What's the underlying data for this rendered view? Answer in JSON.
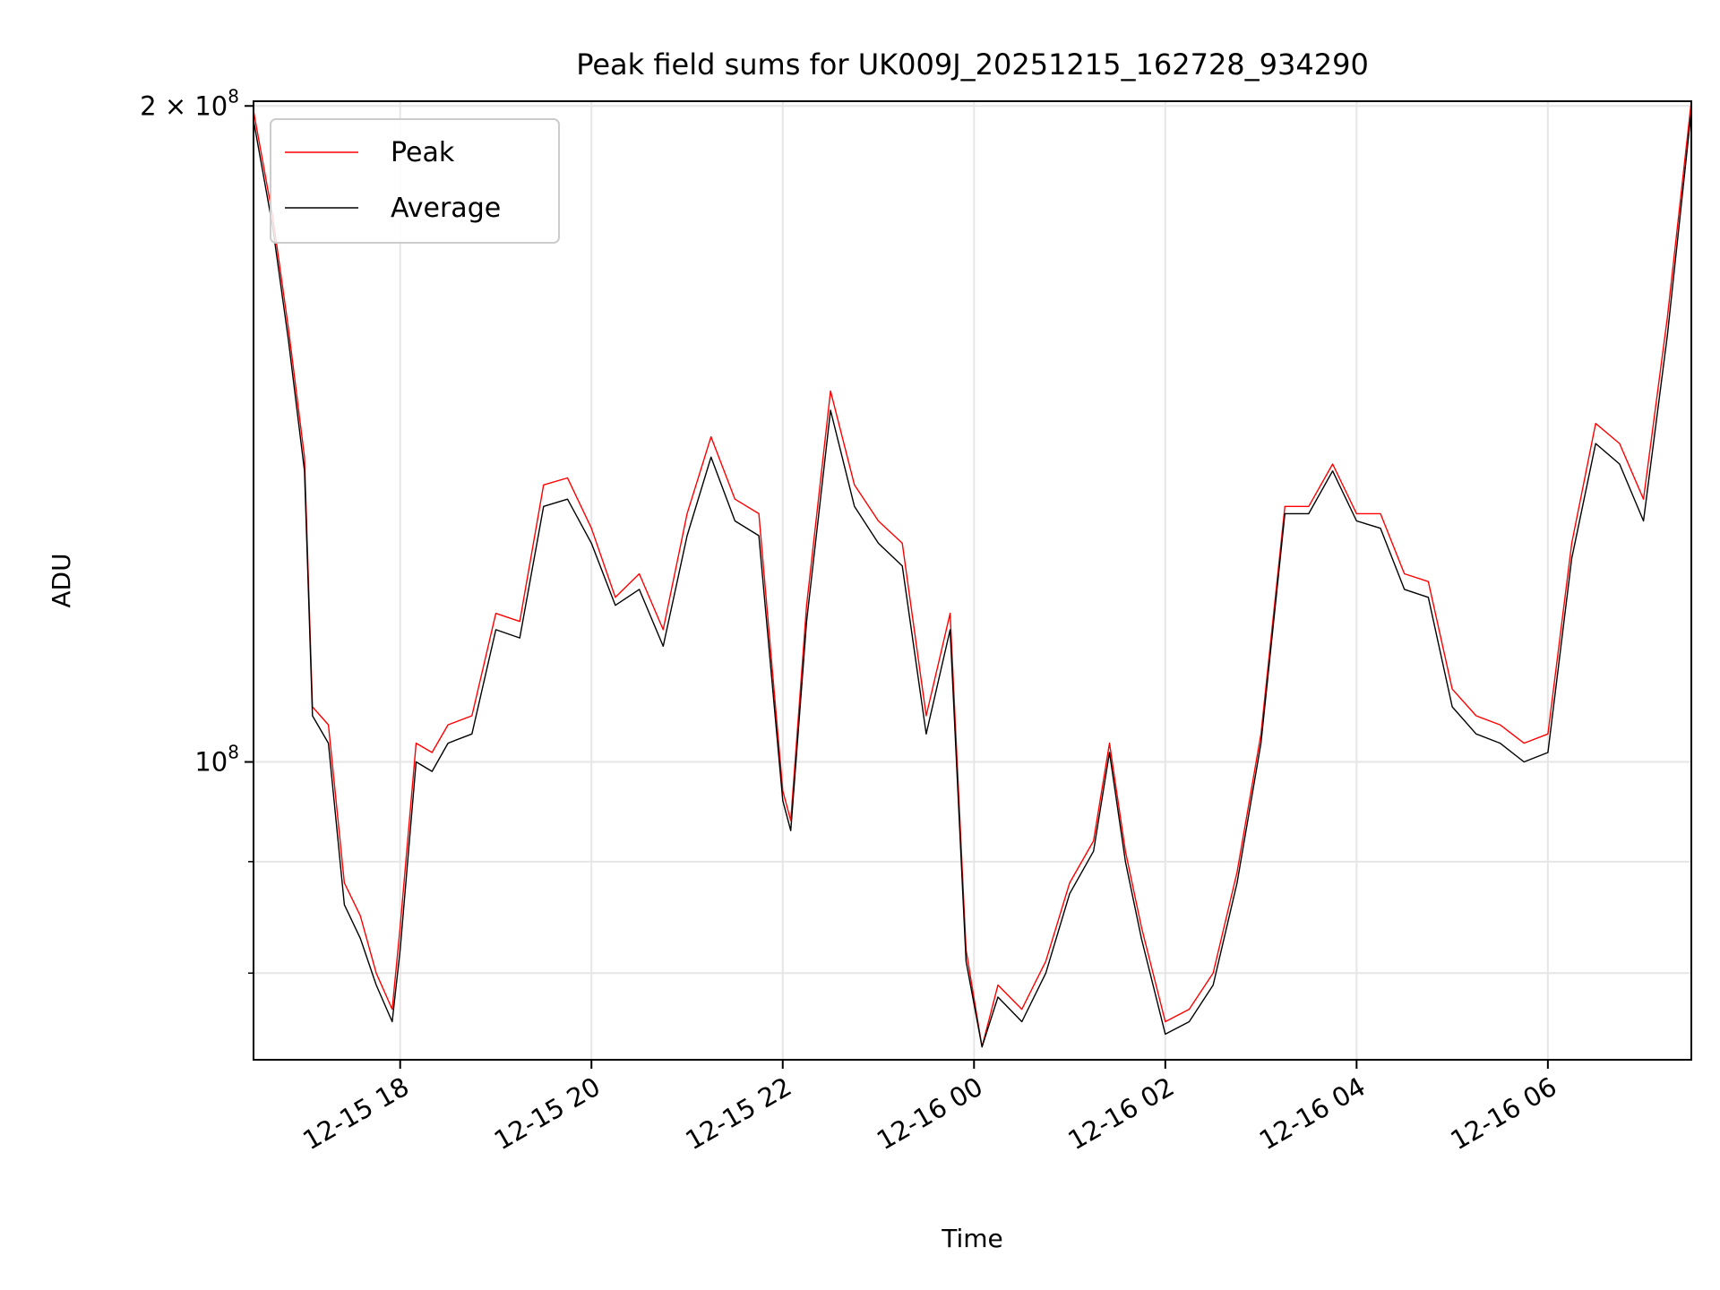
{
  "chart_data": {
    "type": "line",
    "title": "Peak field sums for UK009J_20251215_162728_934290",
    "xlabel": "Time",
    "ylabel": "ADU",
    "yscale": "log",
    "xlim": [
      "2025-12-15 16:28",
      "2025-12-16 07:30"
    ],
    "ylim": [
      73000000,
      201000000
    ],
    "grid": true,
    "legend_position": "top-left",
    "x_ticks": [
      {
        "t": "2025-12-15 18:00",
        "label": "12-15 18"
      },
      {
        "t": "2025-12-15 20:00",
        "label": "12-15 20"
      },
      {
        "t": "2025-12-15 22:00",
        "label": "12-15 22"
      },
      {
        "t": "2025-12-16 00:00",
        "label": "12-16 00"
      },
      {
        "t": "2025-12-16 02:00",
        "label": "12-16 02"
      },
      {
        "t": "2025-12-16 04:00",
        "label": "12-16 04"
      },
      {
        "t": "2025-12-16 06:00",
        "label": "12-16 06"
      }
    ],
    "y_major_ticks": [
      {
        "value": 100000000,
        "label_base": "10",
        "label_exp": "8"
      },
      {
        "value": 200000000,
        "label_base": "2 × 10",
        "label_exp": "8"
      }
    ],
    "y_minor_ticks": [
      80000000,
      90000000
    ],
    "x": [
      "2025-12-15 16:28",
      "2025-12-15 16:40",
      "2025-12-15 16:50",
      "2025-12-15 17:00",
      "2025-12-15 17:05",
      "2025-12-15 17:15",
      "2025-12-15 17:25",
      "2025-12-15 17:35",
      "2025-12-15 17:45",
      "2025-12-15 17:55",
      "2025-12-15 18:00",
      "2025-12-15 18:10",
      "2025-12-15 18:20",
      "2025-12-15 18:30",
      "2025-12-15 18:45",
      "2025-12-15 19:00",
      "2025-12-15 19:15",
      "2025-12-15 19:30",
      "2025-12-15 19:45",
      "2025-12-15 20:00",
      "2025-12-15 20:15",
      "2025-12-15 20:30",
      "2025-12-15 20:45",
      "2025-12-15 21:00",
      "2025-12-15 21:15",
      "2025-12-15 21:30",
      "2025-12-15 21:45",
      "2025-12-15 22:00",
      "2025-12-15 22:05",
      "2025-12-15 22:15",
      "2025-12-15 22:30",
      "2025-12-15 22:45",
      "2025-12-15 23:00",
      "2025-12-15 23:15",
      "2025-12-15 23:30",
      "2025-12-15 23:45",
      "2025-12-15 23:55",
      "2025-12-16 00:05",
      "2025-12-16 00:15",
      "2025-12-16 00:30",
      "2025-12-16 00:45",
      "2025-12-16 01:00",
      "2025-12-16 01:15",
      "2025-12-16 01:25",
      "2025-12-16 01:35",
      "2025-12-16 01:45",
      "2025-12-16 02:00",
      "2025-12-16 02:15",
      "2025-12-16 02:30",
      "2025-12-16 02:45",
      "2025-12-16 03:00",
      "2025-12-16 03:15",
      "2025-12-16 03:30",
      "2025-12-16 03:45",
      "2025-12-16 04:00",
      "2025-12-16 04:15",
      "2025-12-16 04:30",
      "2025-12-16 04:45",
      "2025-12-16 05:00",
      "2025-12-16 05:15",
      "2025-12-16 05:30",
      "2025-12-16 05:45",
      "2025-12-16 06:00",
      "2025-12-16 06:15",
      "2025-12-16 06:30",
      "2025-12-16 06:45",
      "2025-12-16 07:00",
      "2025-12-16 07:15",
      "2025-12-16 07:30"
    ],
    "series": [
      {
        "name": "Peak",
        "color": "#ff0000",
        "values": [
          199000000,
          178000000,
          158000000,
          138000000,
          106000000,
          104000000,
          88000000,
          85000000,
          80000000,
          77000000,
          84000000,
          102000000,
          101000000,
          104000000,
          105000000,
          117000000,
          116000000,
          134000000,
          135000000,
          128000000,
          119000000,
          122000000,
          115000000,
          130000000,
          141000000,
          132000000,
          130000000,
          97000000,
          94000000,
          118000000,
          148000000,
          134000000,
          129000000,
          126000000,
          105000000,
          117000000,
          82000000,
          74000000,
          79000000,
          77000000,
          81000000,
          88000000,
          92000000,
          102000000,
          91000000,
          84000000,
          76000000,
          77000000,
          80000000,
          89000000,
          103000000,
          131000000,
          131000000,
          137000000,
          130000000,
          130000000,
          122000000,
          121000000,
          108000000,
          105000000,
          104000000,
          102000000,
          103000000,
          126000000,
          143000000,
          140000000,
          132000000,
          160000000,
          201000000
        ]
      },
      {
        "name": "Average",
        "color": "#000000",
        "values": [
          197000000,
          176000000,
          156000000,
          136000000,
          105000000,
          102000000,
          86000000,
          83000000,
          79000000,
          76000000,
          82000000,
          100000000,
          99000000,
          102000000,
          103000000,
          115000000,
          114000000,
          131000000,
          132000000,
          126000000,
          118000000,
          120000000,
          113000000,
          127000000,
          138000000,
          129000000,
          127000000,
          96000000,
          93000000,
          116000000,
          145000000,
          131000000,
          126000000,
          123000000,
          103000000,
          115000000,
          81000000,
          74000000,
          78000000,
          76000000,
          80000000,
          87000000,
          91000000,
          101000000,
          90000000,
          83000000,
          75000000,
          76000000,
          79000000,
          88000000,
          102000000,
          130000000,
          130000000,
          136000000,
          129000000,
          128000000,
          120000000,
          119000000,
          106000000,
          103000000,
          102000000,
          100000000,
          101000000,
          124000000,
          140000000,
          137000000,
          129000000,
          157000000,
          199000000
        ]
      }
    ]
  }
}
